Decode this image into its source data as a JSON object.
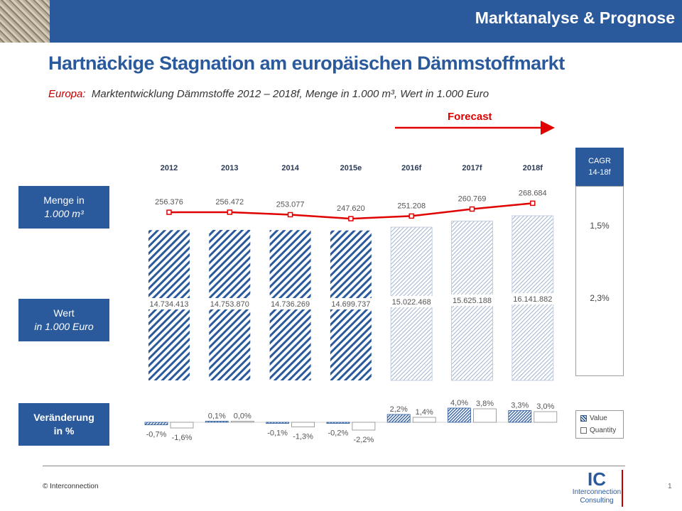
{
  "header": {
    "section_title": "Marktanalyse & Prognose"
  },
  "main_title": "Hartnäckige Stagnation am europäischen Dämmstoffmarkt",
  "subtitle": {
    "region": "Europa:",
    "text": "Marktentwicklung Dämmstoffe 2012 – 2018f, Menge in 1.000 m³, Wert in 1.000 Euro"
  },
  "forecast_label": "Forecast",
  "row_labels": {
    "menge": {
      "line1": "Menge in",
      "line2": "1.000  m³"
    },
    "wert": {
      "line1": "Wert",
      "line2": "in 1.000 Euro"
    },
    "change": {
      "line1": "Veränderung",
      "line2": "in %"
    }
  },
  "cagr": {
    "header_line1": "CAGR",
    "header_line2": "14-18f",
    "menge": "1,5%",
    "wert": "2,3%"
  },
  "legend": {
    "value": "Value",
    "quantity": "Quantity"
  },
  "footer": {
    "copyright": "© Interconnection",
    "page": "1"
  },
  "logo": {
    "mark": "IC",
    "name1": "Interconnection",
    "name2": "Consulting"
  },
  "colors": {
    "brand_blue": "#2b5a9c",
    "line_red": "#e00000",
    "forecast_fill": "#ffffff"
  },
  "chart_data": {
    "type": "bar",
    "categories": [
      "2012",
      "2013",
      "2014",
      "2015e",
      "2016f",
      "2017f",
      "2018f"
    ],
    "forecast_from_index": 4,
    "series": [
      {
        "name": "Value",
        "role": "bars",
        "values": [
          14734413,
          14753870,
          14736269,
          14699737,
          15022468,
          15625188,
          16141882
        ],
        "labels": [
          "14.734.413",
          "14.753.870",
          "14.736.269",
          "14.699.737",
          "15.022.468",
          "15.625.188",
          "16.141.882"
        ]
      },
      {
        "name": "Quantity",
        "role": "line",
        "values": [
          256376,
          256472,
          253077,
          247620,
          251208,
          260769,
          268684
        ],
        "labels": [
          "256.376",
          "256.472",
          "253.077",
          "247.620",
          "251.208",
          "260.769",
          "268.684"
        ]
      }
    ],
    "change": {
      "value": [
        -0.7,
        0.1,
        -0.1,
        -0.2,
        2.2,
        4.0,
        3.3
      ],
      "quantity": [
        -1.6,
        0.0,
        -1.3,
        -2.2,
        1.4,
        3.8,
        3.0
      ],
      "value_labels": [
        "-0,7%",
        "0,1%",
        "-0,1%",
        "-0,2%",
        "2,2%",
        "4,0%",
        "3,3%"
      ],
      "quantity_labels": [
        "-1,6%",
        "0,0%",
        "-1,3%",
        "-2,2%",
        "1,4%",
        "3,8%",
        "3,0%"
      ]
    }
  }
}
